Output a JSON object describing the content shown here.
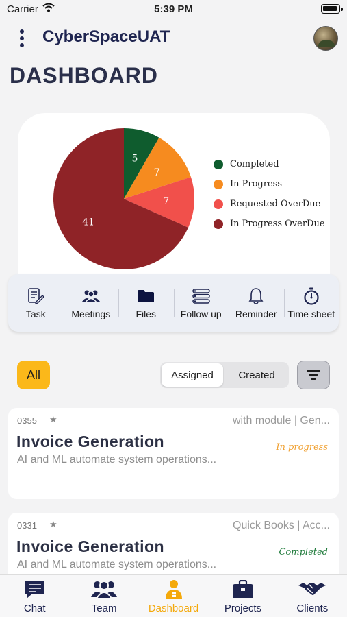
{
  "status_bar": {
    "carrier": "Carrier",
    "time": "5:39 PM"
  },
  "header": {
    "app_title": "CyberSpaceUAT",
    "page_title": "DASHBOARD"
  },
  "chart_data": {
    "type": "pie",
    "slices": [
      {
        "label": "Completed",
        "value": 5,
        "color": "#0f5c2e"
      },
      {
        "label": "In Progress",
        "value": 7,
        "color": "#f68b1f"
      },
      {
        "label": "Requested OverDue",
        "value": 7,
        "color": "#f1504b"
      },
      {
        "label": "In Progress OverDue",
        "value": 41,
        "color": "#8f2327"
      }
    ],
    "legend_placement": "right"
  },
  "quick_actions": [
    {
      "label": "Task",
      "icon": "task-edit-icon"
    },
    {
      "label": "Meetings",
      "icon": "people-group-icon"
    },
    {
      "label": "Files",
      "icon": "folder-icon"
    },
    {
      "label": "Follow up",
      "icon": "list-icon"
    },
    {
      "label": "Reminder",
      "icon": "bell-icon"
    },
    {
      "label": "Time sheet",
      "icon": "stopwatch-icon"
    }
  ],
  "filters": {
    "all_label": "All",
    "assigned_label": "Assigned",
    "created_label": "Created",
    "selected": "Assigned",
    "sort_icon": "filter-lines-icon"
  },
  "tasks": [
    {
      "id": "0355",
      "meta": "with module  |  Gen...",
      "name": "Invoice Generation",
      "description": "AI and ML automate system operations...",
      "status": "In progress",
      "status_color": "#f0a030"
    },
    {
      "id": "0331",
      "meta": "Quick Books  |  Acc...",
      "name": "Invoice Generation",
      "description": "AI and ML automate system operations...",
      "status": "Completed",
      "status_color": "#1e7a3a"
    }
  ],
  "tab_bar": [
    {
      "label": "Chat",
      "icon": "chat-icon",
      "active": false
    },
    {
      "label": "Team",
      "icon": "team-icon",
      "active": false
    },
    {
      "label": "Dashboard",
      "icon": "dashboard-icon",
      "active": true
    },
    {
      "label": "Projects",
      "icon": "briefcase-icon",
      "active": false
    },
    {
      "label": "Clients",
      "icon": "handshake-icon",
      "active": false
    }
  ]
}
